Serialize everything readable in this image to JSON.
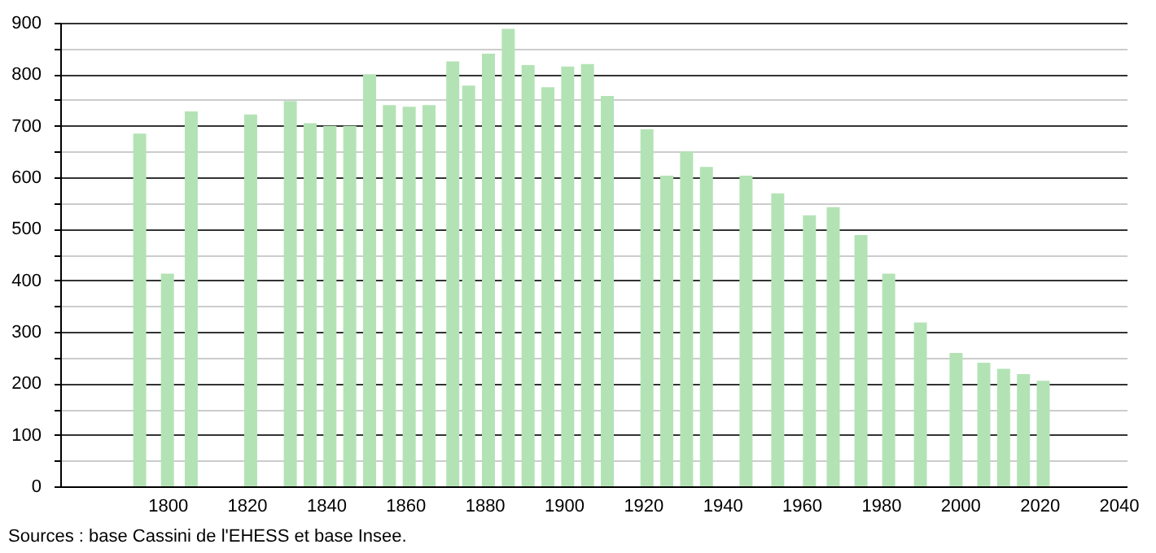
{
  "chart_data": {
    "type": "bar",
    "x": [
      1793,
      1800,
      1806,
      1821,
      1831,
      1836,
      1841,
      1846,
      1851,
      1856,
      1861,
      1866,
      1872,
      1876,
      1881,
      1886,
      1891,
      1896,
      1901,
      1906,
      1911,
      1921,
      1926,
      1931,
      1936,
      1946,
      1954,
      1962,
      1968,
      1975,
      1982,
      1990,
      1999,
      2006,
      2011,
      2016,
      2021
    ],
    "values": [
      685,
      413,
      728,
      722,
      748,
      705,
      700,
      700,
      800,
      740,
      737,
      740,
      825,
      778,
      840,
      888,
      818,
      775,
      815,
      820,
      758,
      693,
      603,
      650,
      620,
      603,
      569,
      526,
      542,
      488,
      413,
      318,
      259,
      240,
      228,
      218,
      205
    ],
    "color": "#b3e3b5",
    "xlim": [
      1775,
      2040
    ],
    "xticks": [
      1800,
      1820,
      1840,
      1860,
      1880,
      1900,
      1920,
      1940,
      1960,
      1980,
      2000,
      2020,
      2040
    ],
    "ylim": [
      0,
      900
    ],
    "yticks": [
      0,
      {
        "value": 50,
        "label": null
      },
      100,
      {
        "value": 150,
        "label": null
      },
      200,
      {
        "value": 250,
        "label": null
      },
      300,
      {
        "value": 350,
        "label": null
      },
      400,
      {
        "value": 450,
        "label": null
      },
      500,
      {
        "value": 550,
        "label": null
      },
      600,
      {
        "value": 650,
        "label": null
      },
      700,
      {
        "value": 750,
        "label": null
      },
      800,
      {
        "value": 850,
        "label": null
      },
      900
    ],
    "grid": "y",
    "annotations": [
      "Sources : base Cassini de l'EHESS et base Insee."
    ]
  }
}
